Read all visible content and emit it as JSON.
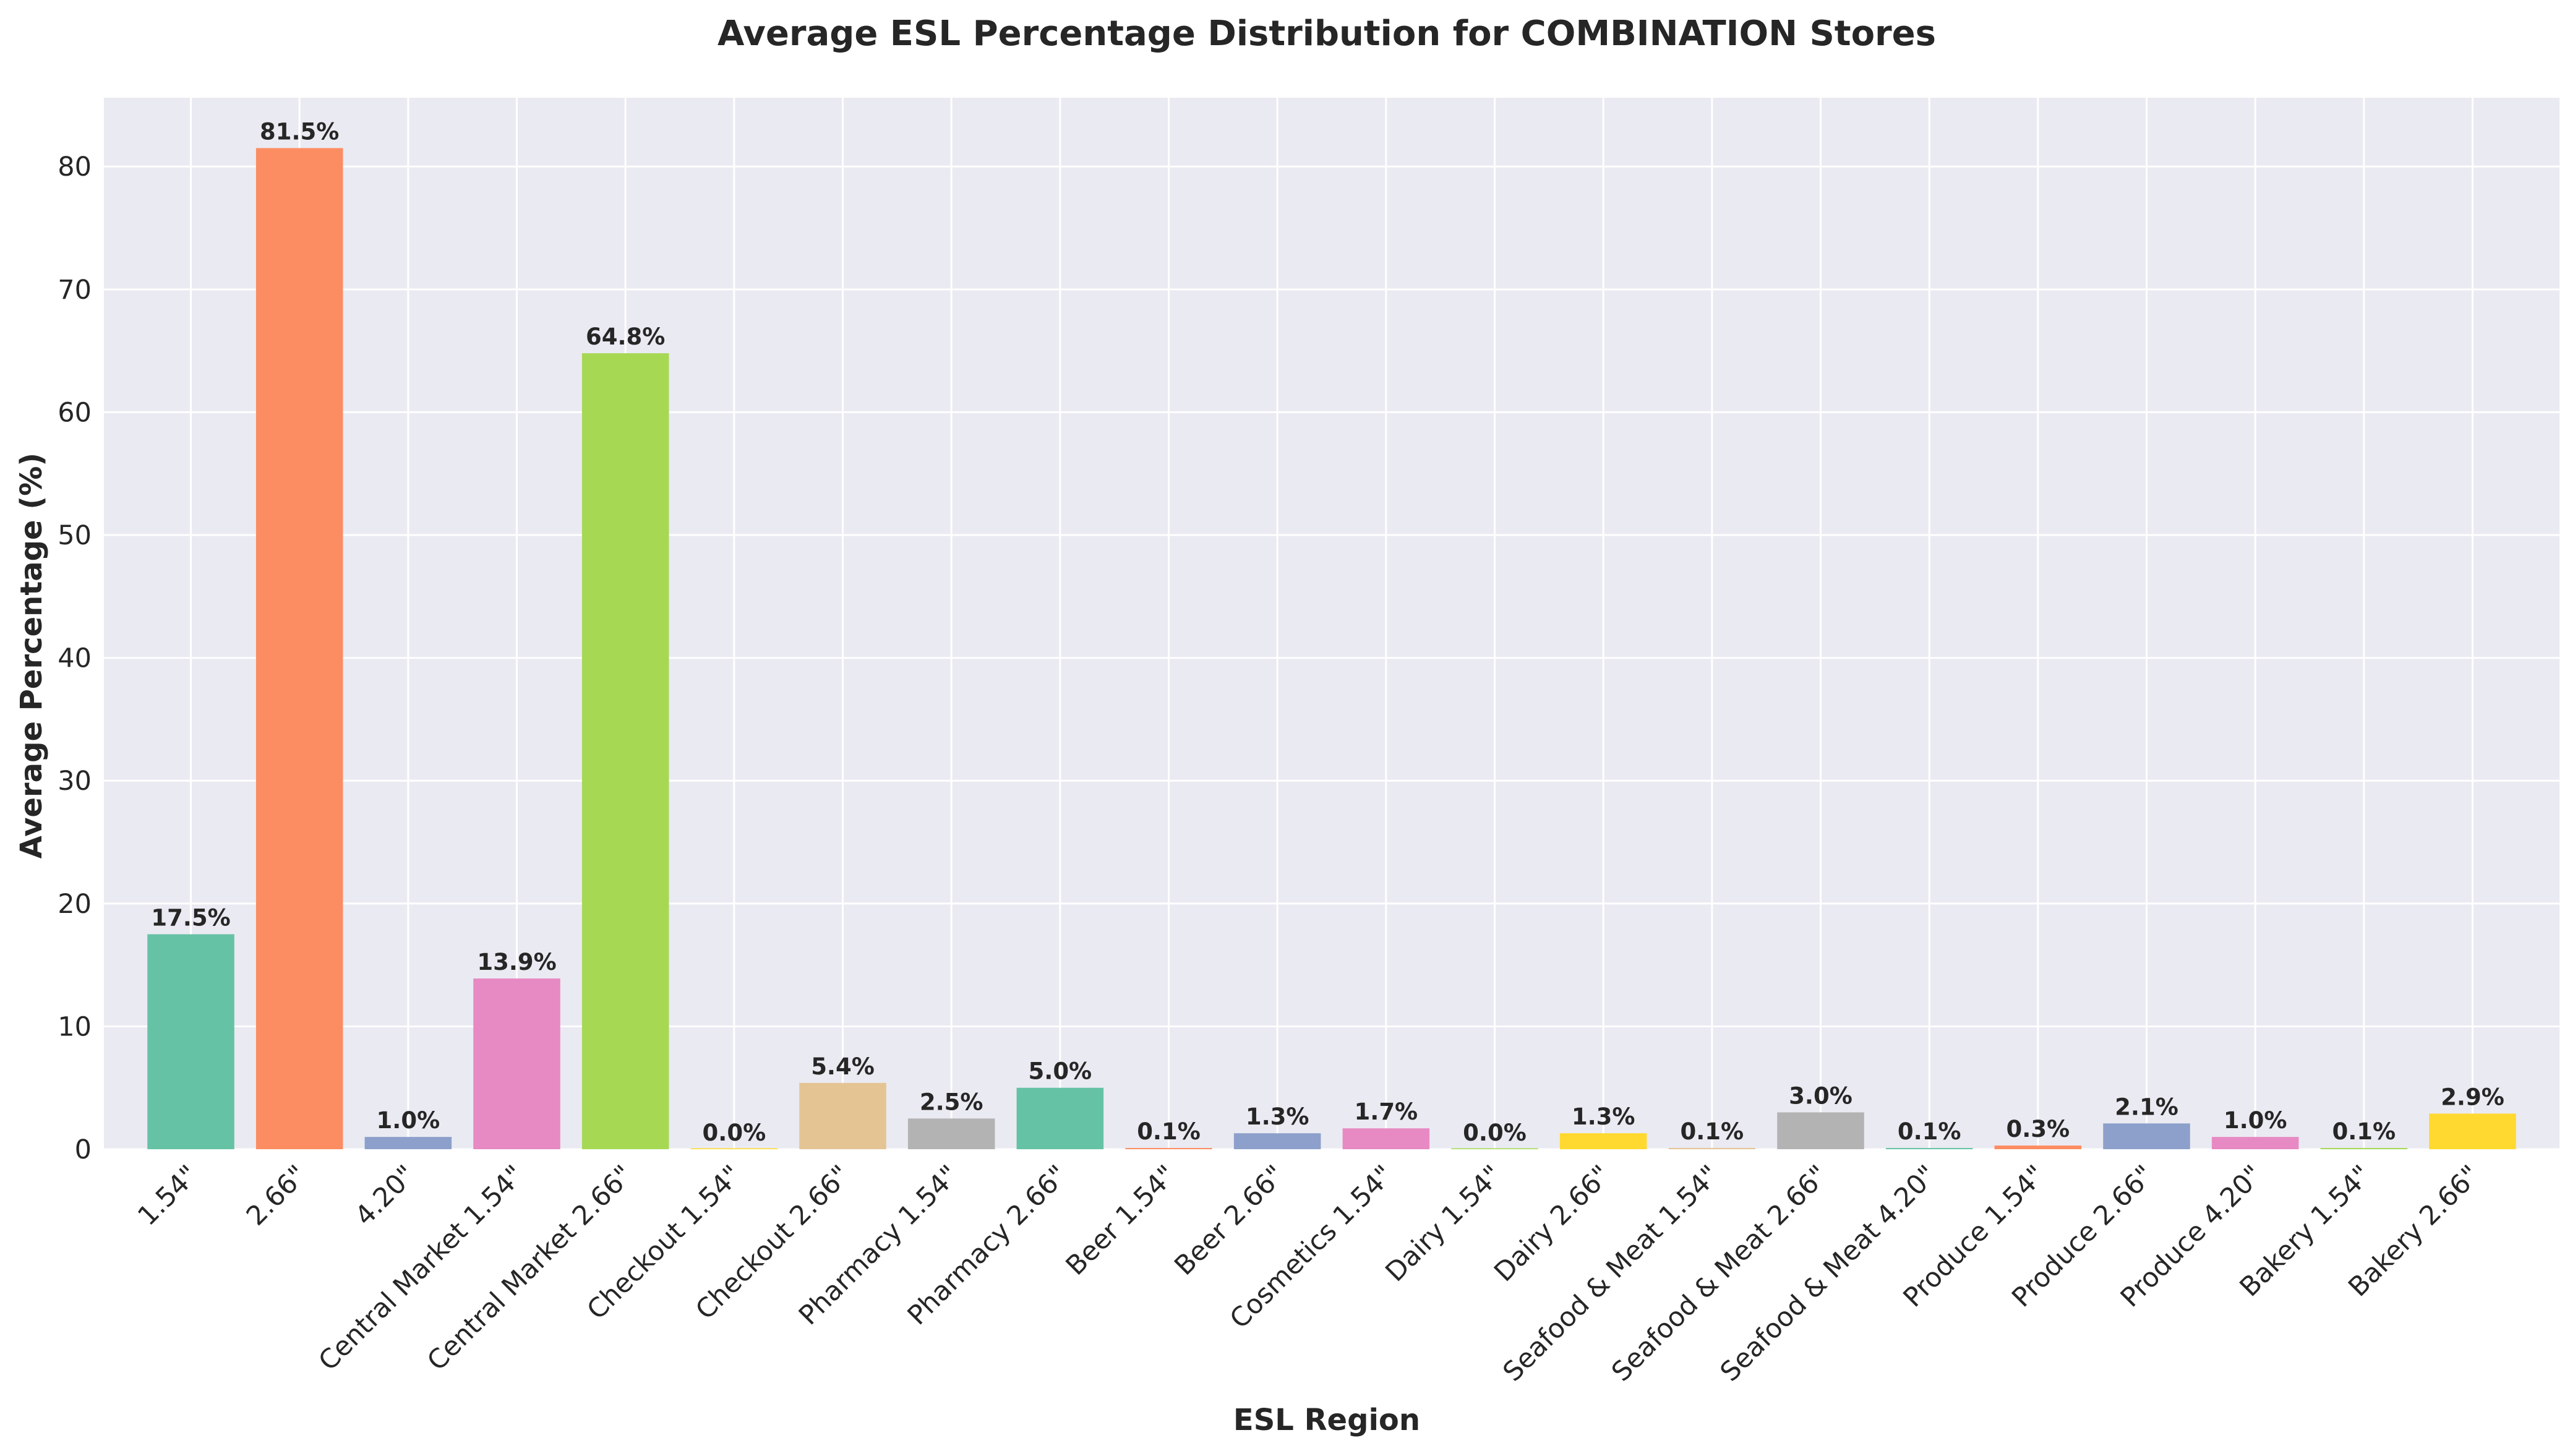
{
  "chart_data": {
    "type": "bar",
    "title": "Average ESL Percentage Distribution for COMBINATION Stores",
    "xlabel": "ESL Region",
    "ylabel": "Average Percentage (%)",
    "ylim": [
      0,
      85.6
    ],
    "yticks": [
      0,
      10,
      20,
      30,
      40,
      50,
      60,
      70,
      80
    ],
    "grid": true,
    "categories": [
      "1.54\"",
      "2.66\"",
      "4.20\"",
      "Central Market 1.54\"",
      "Central Market 2.66\"",
      "Checkout 1.54\"",
      "Checkout 2.66\"",
      "Pharmacy 1.54\"",
      "Pharmacy 2.66\"",
      "Beer 1.54\"",
      "Beer 2.66\"",
      "Cosmetics 1.54\"",
      "Dairy 1.54\"",
      "Dairy 2.66\"",
      "Seafood & Meat 1.54\"",
      "Seafood & Meat 2.66\"",
      "Seafood & Meat 4.20\"",
      "Produce 1.54\"",
      "Produce 2.66\"",
      "Produce 4.20\"",
      "Bakery 1.54\"",
      "Bakery 2.66\""
    ],
    "values": [
      17.5,
      81.5,
      1.0,
      13.9,
      64.8,
      0.0,
      5.4,
      2.5,
      5.0,
      0.1,
      1.3,
      1.7,
      0.0,
      1.3,
      0.1,
      3.0,
      0.1,
      0.3,
      2.1,
      1.0,
      0.1,
      2.9
    ],
    "data_labels": [
      "17.5%",
      "81.5%",
      "1.0%",
      "13.9%",
      "64.8%",
      "0.0%",
      "5.4%",
      "2.5%",
      "5.0%",
      "0.1%",
      "1.3%",
      "1.7%",
      "0.0%",
      "1.3%",
      "0.1%",
      "3.0%",
      "0.1%",
      "0.3%",
      "2.1%",
      "1.0%",
      "0.1%",
      "2.9%"
    ],
    "colors": [
      "#66c2a5",
      "#fc8d62",
      "#8da0cb",
      "#e78ac3",
      "#a6d854",
      "#ffd92f",
      "#e5c494",
      "#b3b3b3",
      "#66c2a5",
      "#fc8d62",
      "#8da0cb",
      "#e78ac3",
      "#a6d854",
      "#ffd92f",
      "#e5c494",
      "#b3b3b3",
      "#66c2a5",
      "#fc8d62",
      "#8da0cb",
      "#e78ac3",
      "#a6d854",
      "#ffd92f"
    ],
    "background_color": "#eaeaf2",
    "grid_color": "#ffffff"
  }
}
